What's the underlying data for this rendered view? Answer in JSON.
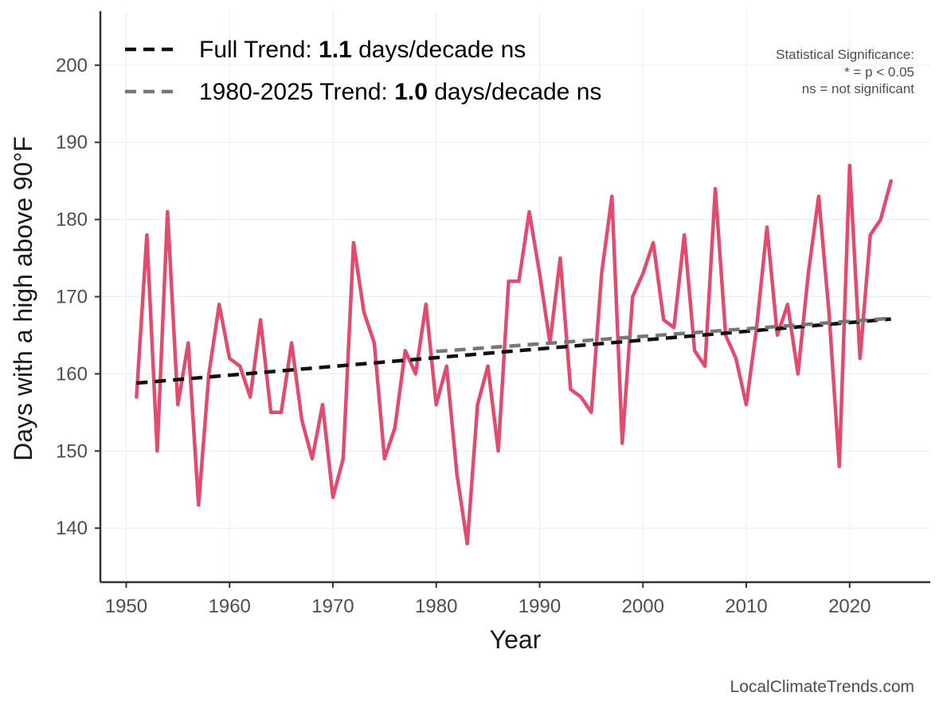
{
  "chart_data": {
    "type": "line",
    "x_label": "Year",
    "y_label": "Days with a high above 90°F",
    "x_range": [
      1947.5,
      2027.8
    ],
    "y_range": [
      133,
      207
    ],
    "x_ticks": [
      1950,
      1960,
      1970,
      1980,
      1990,
      2000,
      2010,
      2020
    ],
    "y_ticks": [
      140,
      150,
      160,
      170,
      180,
      190,
      200
    ],
    "grid": true,
    "legend_placement": "top-left",
    "series": [
      {
        "color": "#e04b6e",
        "x": [
          1951,
          1952,
          1953,
          1954,
          1955,
          1956,
          1957,
          1958,
          1959,
          1960,
          1961,
          1962,
          1963,
          1964,
          1965,
          1966,
          1967,
          1968,
          1969,
          1970,
          1971,
          1972,
          1973,
          1974,
          1975,
          1976,
          1977,
          1978,
          1979,
          1980,
          1981,
          1982,
          1983,
          1984,
          1985,
          1986,
          1987,
          1988,
          1989,
          1990,
          1991,
          1992,
          1993,
          1994,
          1995,
          1996,
          1997,
          1998,
          1999,
          2000,
          2001,
          2002,
          2003,
          2004,
          2005,
          2006,
          2007,
          2008,
          2009,
          2010,
          2011,
          2012,
          2013,
          2014,
          2015,
          2016,
          2017,
          2018,
          2019,
          2020,
          2021,
          2022,
          2023,
          2024
        ],
        "y": [
          157,
          178,
          150,
          181,
          156,
          164,
          143,
          160,
          169,
          162,
          161,
          157,
          167,
          155,
          155,
          164,
          154,
          149,
          156,
          144,
          149,
          177,
          168,
          164,
          149,
          153,
          163,
          160,
          169,
          156,
          161,
          147,
          138,
          156,
          161,
          150,
          172,
          172,
          181,
          173,
          164,
          175,
          158,
          157,
          155,
          173,
          183,
          151,
          170,
          173,
          177,
          167,
          166,
          178,
          163,
          161,
          184,
          165,
          162,
          156,
          166,
          179,
          165,
          169,
          160,
          173,
          183,
          168,
          148,
          187,
          162,
          178,
          180,
          185
        ]
      }
    ],
    "trend_lines": [
      {
        "label": "Full Trend",
        "slope_label": "1.1",
        "unit": "days/decade",
        "significance": "ns",
        "color": "#111111",
        "x": [
          1951,
          2024
        ],
        "y": [
          158.8,
          167.1
        ]
      },
      {
        "label": "1980-2025 Trend",
        "slope_label": "1.0",
        "unit": "days/decade",
        "significance": "ns",
        "color": "#777777",
        "x": [
          1980,
          2024
        ],
        "y": [
          162.9,
          167.2
        ]
      }
    ],
    "legend": [
      {
        "prefix": "Full Trend: ",
        "value": "1.1",
        "suffix": " days/decade ns"
      },
      {
        "prefix": "1980-2025 Trend: ",
        "value": "1.0",
        "suffix": " days/decade ns"
      }
    ],
    "significance_note": [
      "Statistical Significance:",
      "* = p < 0.05",
      "ns = not significant"
    ],
    "caption": "LocalClimateTrends.com"
  }
}
